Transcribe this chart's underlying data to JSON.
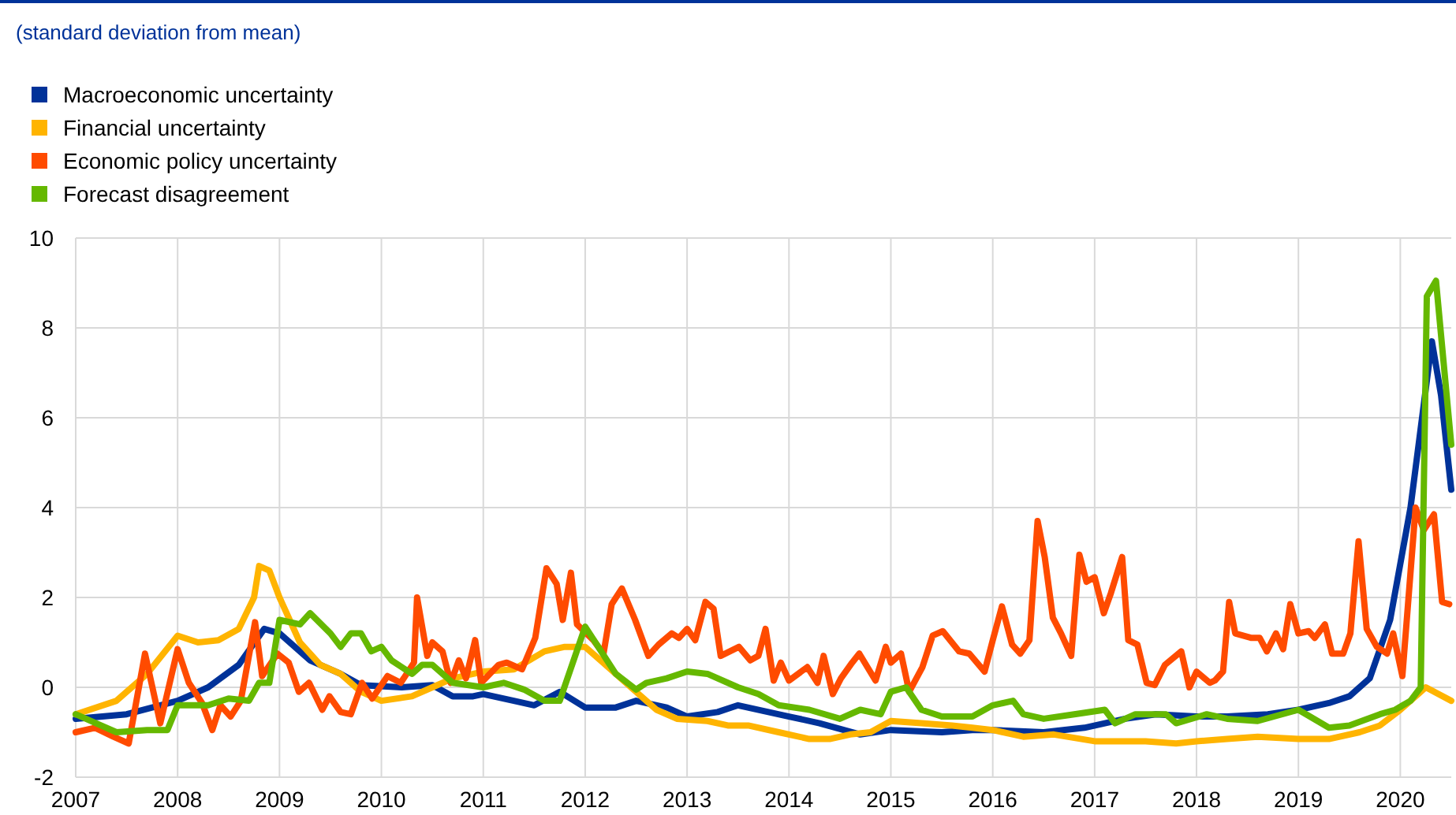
{
  "chart_data": {
    "type": "line",
    "subtitle": "(standard deviation from mean)",
    "xlim": [
      2007,
      2020.5
    ],
    "xticks": [
      2007,
      2008,
      2009,
      2010,
      2011,
      2012,
      2013,
      2014,
      2015,
      2016,
      2017,
      2018,
      2019,
      2020
    ],
    "ylim": [
      -2,
      10
    ],
    "yticks": [
      -2,
      0,
      2,
      4,
      6,
      8,
      10
    ],
    "grid": true,
    "legend": "top left",
    "marker": "none",
    "line_style": "solid",
    "series": [
      {
        "name": "Macroeconomic uncertainty",
        "color": "#003299",
        "x": [
          2007,
          2007.5,
          2008,
          2008.3,
          2008.6,
          2008.85,
          2009,
          2009.3,
          2009.6,
          2009.8,
          2010.2,
          2010.5,
          2010.7,
          2010.9,
          2011,
          2011.3,
          2011.5,
          2011.75,
          2012,
          2012.3,
          2012.5,
          2012.8,
          2013,
          2013.3,
          2013.5,
          2014,
          2014.3,
          2014.7,
          2015,
          2015.5,
          2015.8,
          2016,
          2016.5,
          2016.9,
          2017.3,
          2017.6,
          2018,
          2018.3,
          2018.7,
          2019,
          2019.3,
          2019.5,
          2019.7,
          2019.9,
          2020.1,
          2020.31,
          2020.4,
          2020.5
        ],
        "values": [
          -0.7,
          -0.6,
          -0.3,
          0,
          0.5,
          1.3,
          1.2,
          0.6,
          0.3,
          0.05,
          0,
          0.05,
          -0.2,
          -0.2,
          -0.15,
          -0.3,
          -0.4,
          -0.1,
          -0.45,
          -0.45,
          -0.3,
          -0.45,
          -0.65,
          -0.55,
          -0.4,
          -0.65,
          -0.8,
          -1.05,
          -0.95,
          -1,
          -0.95,
          -0.95,
          -1,
          -0.9,
          -0.7,
          -0.6,
          -0.65,
          -0.65,
          -0.6,
          -0.5,
          -0.35,
          -0.2,
          0.2,
          1.5,
          4,
          7.7,
          6.5,
          4.4
        ]
      },
      {
        "name": "Financial uncertainty",
        "color": "#ffb400",
        "x": [
          2007,
          2007.4,
          2007.7,
          2008,
          2008.2,
          2008.4,
          2008.6,
          2008.75,
          2008.8,
          2008.9,
          2009,
          2009.2,
          2009.4,
          2009.6,
          2009.8,
          2010,
          2010.3,
          2010.5,
          2010.7,
          2011,
          2011.3,
          2011.6,
          2011.8,
          2012,
          2012.2,
          2012.5,
          2012.7,
          2012.9,
          2013.2,
          2013.4,
          2013.6,
          2013.9,
          2014.2,
          2014.4,
          2014.6,
          2014.8,
          2015,
          2015.3,
          2015.6,
          2015.8,
          2016,
          2016.3,
          2016.6,
          2017,
          2017.5,
          2017.8,
          2018,
          2018.3,
          2018.6,
          2019,
          2019.3,
          2019.6,
          2019.8,
          2020,
          2020.25,
          2020.5
        ],
        "values": [
          -0.6,
          -0.3,
          0.3,
          1.15,
          1,
          1.05,
          1.3,
          2,
          2.7,
          2.6,
          2,
          1,
          0.5,
          0.3,
          -0.1,
          -0.3,
          -0.2,
          0,
          0.2,
          0.35,
          0.4,
          0.8,
          0.9,
          0.9,
          0.5,
          -0.1,
          -0.5,
          -0.7,
          -0.75,
          -0.85,
          -0.85,
          -1,
          -1.15,
          -1.15,
          -1.05,
          -1,
          -0.75,
          -0.8,
          -0.85,
          -0.9,
          -0.95,
          -1.1,
          -1.05,
          -1.2,
          -1.2,
          -1.25,
          -1.2,
          -1.15,
          -1.1,
          -1.15,
          -1.15,
          -1,
          -0.85,
          -0.5,
          0,
          -0.3
        ]
      },
      {
        "name": "Economic policy uncertainty",
        "color": "#ff4b00",
        "x": [
          2007,
          2007.19,
          2007.37,
          2007.52,
          2007.68,
          2007.83,
          2008,
          2008.11,
          2008.24,
          2008.34,
          2008.42,
          2008.52,
          2008.62,
          2008.76,
          2008.83,
          2008.98,
          2009.09,
          2009.19,
          2009.29,
          2009.42,
          2009.49,
          2009.6,
          2009.7,
          2009.81,
          2009.91,
          2010.06,
          2010.19,
          2010.32,
          2010.35,
          2010.45,
          2010.5,
          2010.6,
          2010.68,
          2010.76,
          2010.83,
          2010.92,
          2010.98,
          2011.15,
          2011.23,
          2011.38,
          2011.51,
          2011.62,
          2011.72,
          2011.78,
          2011.86,
          2011.92,
          2012.08,
          2012.18,
          2012.26,
          2012.36,
          2012.49,
          2012.62,
          2012.72,
          2012.85,
          2012.92,
          2013,
          2013.08,
          2013.18,
          2013.26,
          2013.33,
          2013.51,
          2013.62,
          2013.7,
          2013.77,
          2013.85,
          2013.92,
          2014,
          2014.18,
          2014.28,
          2014.34,
          2014.43,
          2014.51,
          2014.62,
          2014.69,
          2014.85,
          2014.95,
          2015,
          2015.1,
          2015.18,
          2015.31,
          2015.41,
          2015.51,
          2015.67,
          2015.77,
          2015.92,
          2016,
          2016.09,
          2016.19,
          2016.27,
          2016.36,
          2016.44,
          2016.51,
          2016.59,
          2016.67,
          2016.77,
          2016.85,
          2016.92,
          2017,
          2017.09,
          2017.16,
          2017.27,
          2017.33,
          2017.42,
          2017.51,
          2017.59,
          2017.69,
          2017.85,
          2017.93,
          2018,
          2018.13,
          2018.18,
          2018.26,
          2018.32,
          2018.38,
          2018.54,
          2018.62,
          2018.69,
          2018.78,
          2018.85,
          2018.92,
          2019,
          2019.1,
          2019.16,
          2019.26,
          2019.33,
          2019.44,
          2019.51,
          2019.59,
          2019.67,
          2019.77,
          2019.87,
          2019.93,
          2020.02,
          2020.15,
          2020.23,
          2020.33,
          2020.41,
          2020.48
        ],
        "values": [
          -1,
          -0.9,
          -1.1,
          -1.25,
          0.75,
          -0.8,
          0.85,
          0.1,
          -0.35,
          -0.95,
          -0.4,
          -0.65,
          -0.3,
          1.45,
          0.25,
          0.75,
          0.55,
          -0.1,
          0.1,
          -0.5,
          -0.2,
          -0.55,
          -0.6,
          0.1,
          -0.25,
          0.25,
          0.1,
          0.55,
          2,
          0.7,
          1,
          0.8,
          0.1,
          0.6,
          0.2,
          1.05,
          0.1,
          0.5,
          0.55,
          0.4,
          1.1,
          2.65,
          2.3,
          1.5,
          2.55,
          1.4,
          1.05,
          0.75,
          1.85,
          2.2,
          1.5,
          0.7,
          0.95,
          1.2,
          1.1,
          1.3,
          1.05,
          1.9,
          1.75,
          0.7,
          0.9,
          0.6,
          0.7,
          1.3,
          0.15,
          0.55,
          0.15,
          0.45,
          0.1,
          0.7,
          -0.15,
          0.2,
          0.55,
          0.75,
          0.15,
          0.9,
          0.55,
          0.75,
          -0.1,
          0.45,
          1.15,
          1.25,
          0.8,
          0.75,
          0.35,
          1.05,
          1.8,
          0.95,
          0.75,
          1.05,
          3.7,
          2.9,
          1.55,
          1.2,
          0.7,
          2.95,
          2.35,
          2.45,
          1.65,
          2.1,
          2.9,
          1.05,
          0.95,
          0.1,
          0.05,
          0.5,
          0.8,
          0,
          0.35,
          0.1,
          0.15,
          0.35,
          1.9,
          1.2,
          1.1,
          1.1,
          0.8,
          1.2,
          0.85,
          1.85,
          1.2,
          1.25,
          1.1,
          1.4,
          0.75,
          0.75,
          1.2,
          3.25,
          1.3,
          0.9,
          0.75,
          1.2,
          0.25,
          4,
          3.5,
          3.85,
          1.9,
          1.85
        ]
      },
      {
        "name": "Forecast disagreement",
        "color": "#65b800",
        "x": [
          2007,
          2007.2,
          2007.4,
          2007.7,
          2007.9,
          2008,
          2008.3,
          2008.5,
          2008.7,
          2008.8,
          2008.9,
          2009,
          2009.2,
          2009.3,
          2009.5,
          2009.6,
          2009.7,
          2009.8,
          2009.9,
          2010,
          2010.1,
          2010.3,
          2010.4,
          2010.5,
          2010.7,
          2011,
          2011.2,
          2011.4,
          2011.6,
          2011.75,
          2012,
          2012.3,
          2012.5,
          2012.6,
          2012.8,
          2013,
          2013.2,
          2013.5,
          2013.7,
          2013.9,
          2014.2,
          2014.5,
          2014.7,
          2014.9,
          2015,
          2015.15,
          2015.3,
          2015.5,
          2015.8,
          2016,
          2016.2,
          2016.3,
          2016.5,
          2016.8,
          2017.1,
          2017.2,
          2017.4,
          2017.7,
          2017.8,
          2018.1,
          2018.3,
          2018.6,
          2019,
          2019.3,
          2019.5,
          2019.8,
          2019.95,
          2020.1,
          2020.2,
          2020.26,
          2020.35,
          2020.5
        ],
        "values": [
          -0.6,
          -0.8,
          -1,
          -0.95,
          -0.95,
          -0.4,
          -0.4,
          -0.25,
          -0.3,
          0.1,
          0.1,
          1.5,
          1.4,
          1.65,
          1.2,
          0.9,
          1.2,
          1.2,
          0.8,
          0.9,
          0.6,
          0.3,
          0.5,
          0.5,
          0.1,
          0,
          0.1,
          -0.05,
          -0.3,
          -0.3,
          1.35,
          0.3,
          -0.05,
          0.1,
          0.2,
          0.35,
          0.3,
          0,
          -0.15,
          -0.4,
          -0.5,
          -0.7,
          -0.5,
          -0.6,
          -0.1,
          0,
          -0.5,
          -0.65,
          -0.65,
          -0.4,
          -0.3,
          -0.6,
          -0.7,
          -0.6,
          -0.5,
          -0.8,
          -0.6,
          -0.6,
          -0.8,
          -0.6,
          -0.7,
          -0.75,
          -0.5,
          -0.9,
          -0.85,
          -0.6,
          -0.5,
          -0.3,
          0,
          8.7,
          9.05,
          5.4
        ]
      }
    ]
  }
}
